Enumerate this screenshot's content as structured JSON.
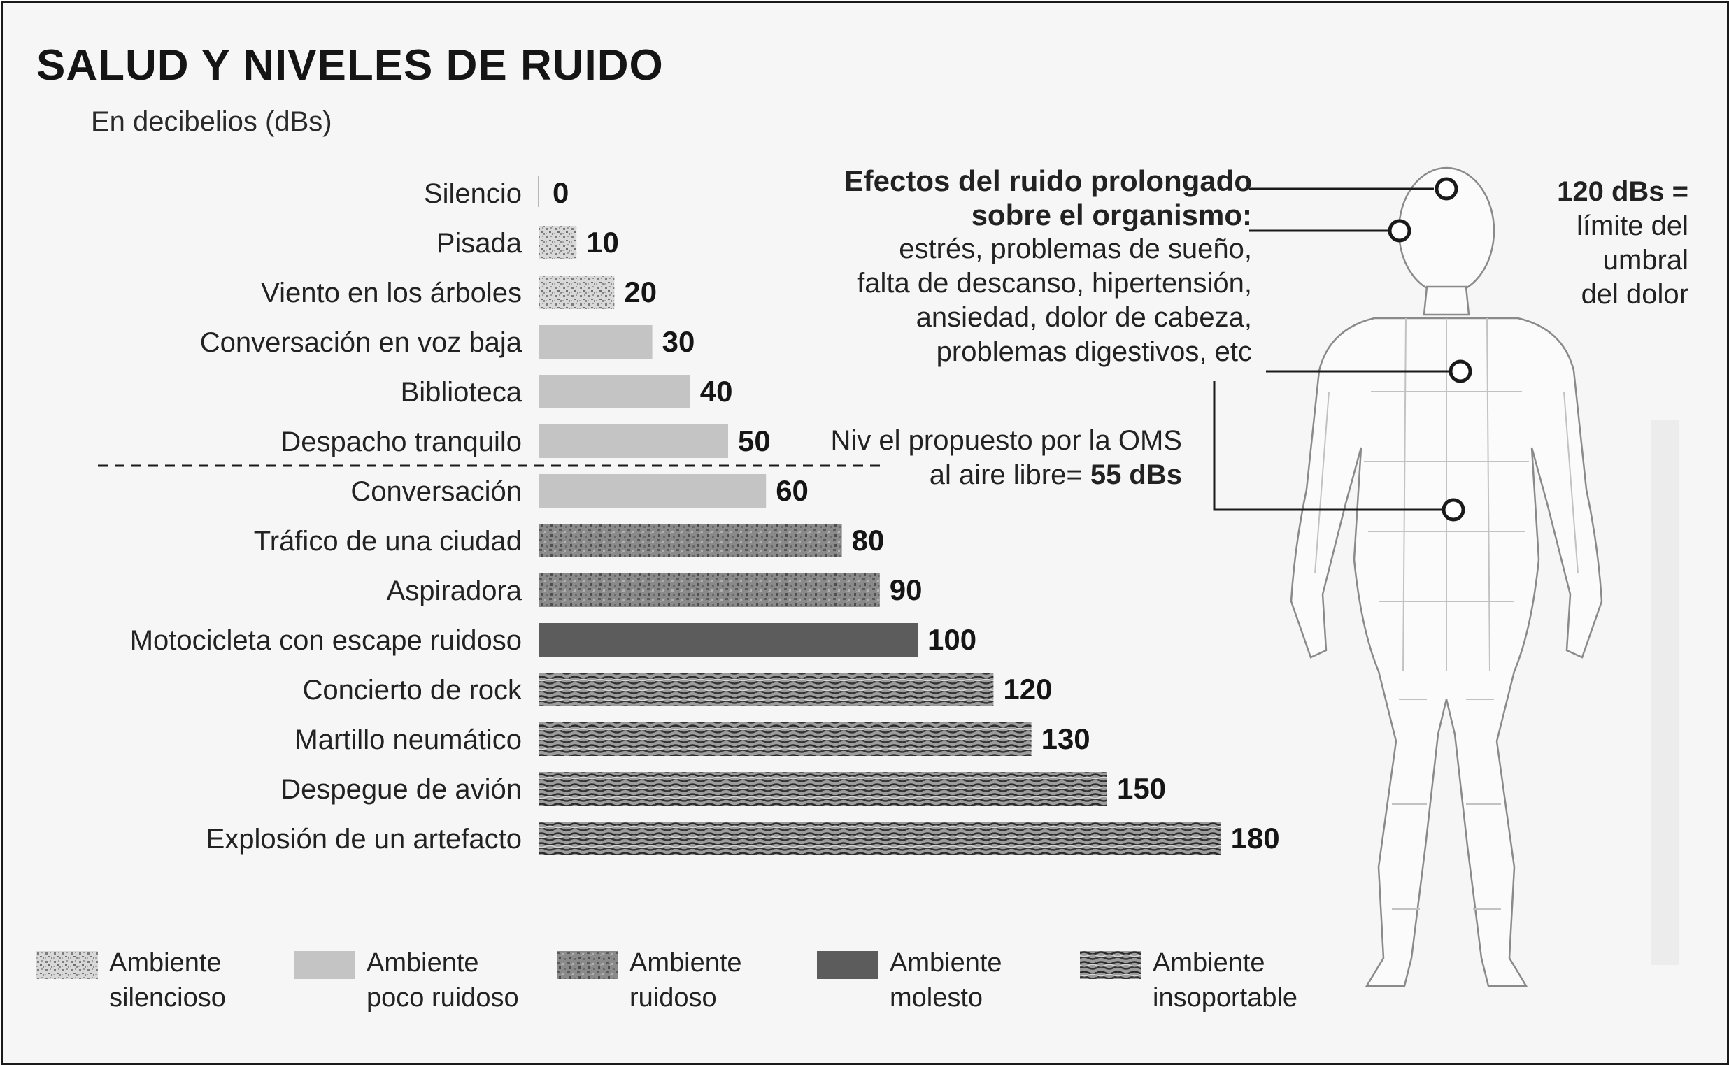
{
  "title": "SALUD Y NIVELES DE RUIDO",
  "subtitle": "En decibelios (dBs)",
  "chart_data": {
    "type": "bar",
    "orientation": "horizontal",
    "title": "SALUD Y NIVELES DE RUIDO",
    "subtitle": "En decibelios (dBs)",
    "xlim": [
      0,
      180
    ],
    "grid": false,
    "legend_position": "bottom",
    "categories": [
      "Silencio",
      "Pisada",
      "Viento en los árboles",
      "Conversación en voz baja",
      "Biblioteca",
      "Despacho tranquilo",
      "Conversación",
      "Tráfico de una ciudad",
      "Aspiradora",
      "Motocicleta con escape ruidoso",
      "Concierto de rock",
      "Martillo neumático",
      "Despegue de avión",
      "Explosión de un artefacto"
    ],
    "values": [
      0,
      10,
      20,
      30,
      40,
      50,
      60,
      80,
      90,
      100,
      120,
      130,
      150,
      180
    ],
    "value_labels": [
      "0",
      "10",
      "20",
      "30",
      "40",
      "50",
      "60",
      "80",
      "90",
      "100",
      "120",
      "130",
      "150",
      "180"
    ],
    "bar_class": [
      "silencioso",
      "silencioso",
      "silencioso",
      "poco_ruidoso",
      "poco_ruidoso",
      "poco_ruidoso",
      "poco_ruidoso",
      "ruidoso",
      "ruidoso",
      "molesto",
      "insoportable",
      "insoportable",
      "insoportable",
      "insoportable"
    ],
    "legend": [
      {
        "key": "silencioso",
        "line1": "Ambiente",
        "line2": "silencioso",
        "color": "#9a9a9a",
        "pattern": "speckle-light"
      },
      {
        "key": "poco_ruidoso",
        "line1": "Ambiente",
        "line2": "poco ruidoso",
        "color": "#c4c4c4",
        "pattern": "solid"
      },
      {
        "key": "ruidoso",
        "line1": "Ambiente",
        "line2": "ruidoso",
        "color": "#7a7a7a",
        "pattern": "speckle-dark"
      },
      {
        "key": "molesto",
        "line1": "Ambiente",
        "line2": "molesto",
        "color": "#5c5c5c",
        "pattern": "solid"
      },
      {
        "key": "insoportable",
        "line1": "Ambiente",
        "line2": "insoportable",
        "color": "#3c3c3c",
        "pattern": "wavy"
      }
    ],
    "reference_line": {
      "value": 55,
      "text_line1": "Niv el propuesto por la OMS",
      "text_line2_prefix": "al aire libre= ",
      "text_line2_value": "55 dBs"
    }
  },
  "effects": {
    "heading_line1": "Efectos del ruido prolongado",
    "heading_line2": "sobre el organismo:",
    "line1": "estrés, problemas de sueño,",
    "line2": "falta de descanso, hipertensión,",
    "line3": "ansiedad, dolor de cabeza,",
    "line4": "problemas digestivos, etc"
  },
  "threshold": {
    "value": "120 dBs =",
    "line1": "límite del",
    "line2": "umbral",
    "line3": "del dolor"
  },
  "colors": {
    "text": "#1a1a1a",
    "background": "#f6f6f6",
    "frame": "#1a1a1a"
  },
  "figure": {
    "icon": "human-body-wireframe-icon"
  }
}
